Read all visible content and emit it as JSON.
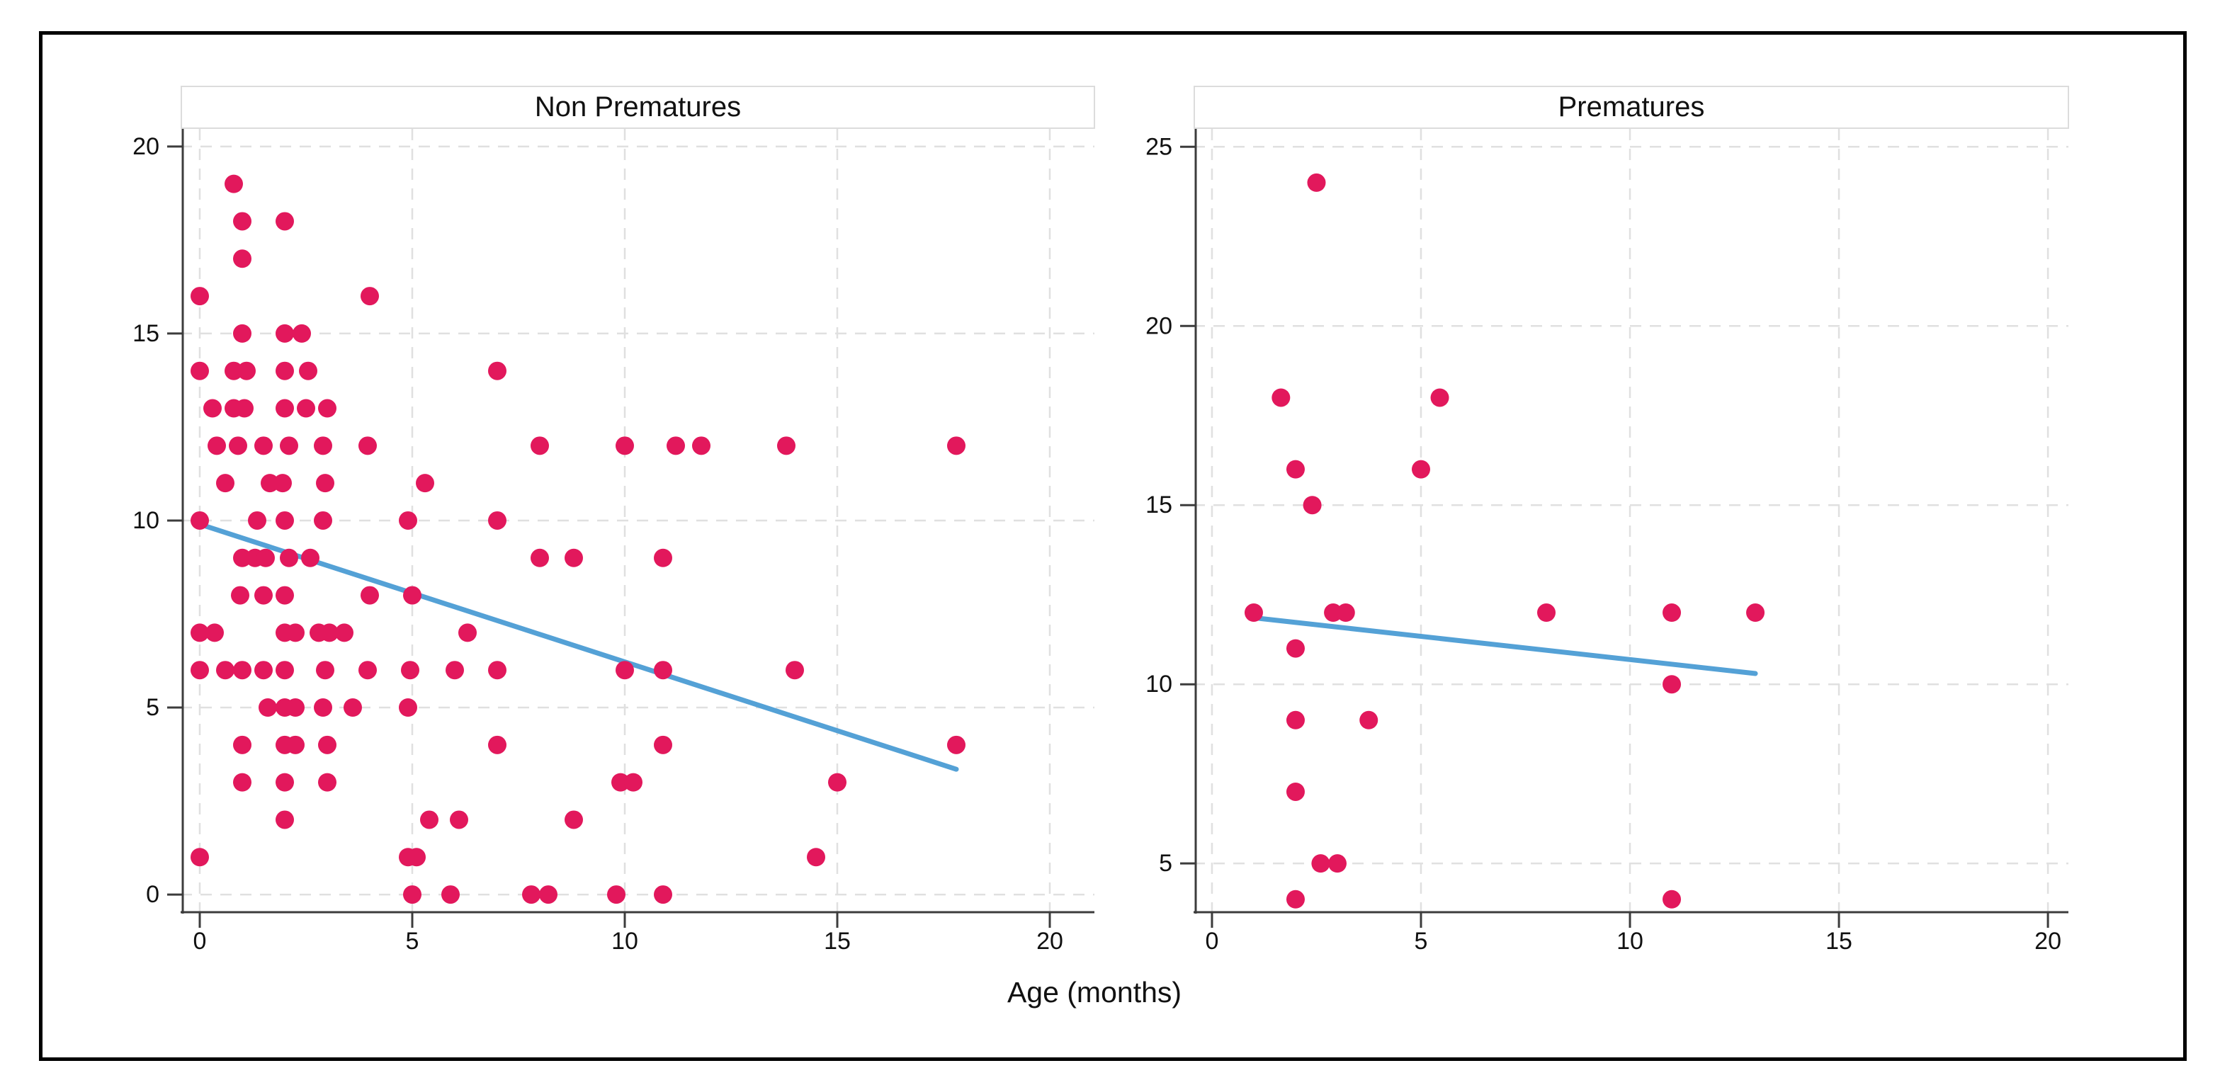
{
  "figure": {
    "x_axis_label": "Age (months)",
    "colors": {
      "dot": "#e2185c",
      "trend_line": "#54a1d6",
      "grid": "#e0e0e0",
      "axis": "#3c3c3c",
      "tick_label": "#111111",
      "strip_border": "#dcdcdc",
      "outer_border": "#000000",
      "background": "#ffffff"
    }
  },
  "chart_data": [
    {
      "type": "scatter",
      "id": "non-prematures",
      "title": "Non Prematures",
      "xlabel": "Age (months)",
      "ylabel": "",
      "xlim": [
        -0.45,
        21.05
      ],
      "ylim": [
        -0.51,
        20.47
      ],
      "x_ticks": [
        0,
        5,
        10,
        15,
        20
      ],
      "y_ticks": [
        0,
        5,
        10,
        15,
        20
      ],
      "grid": true,
      "legend": "none",
      "points": [
        [
          0.8,
          19
        ],
        [
          1,
          18
        ],
        [
          2,
          18
        ],
        [
          1,
          17
        ],
        [
          0,
          16
        ],
        [
          4,
          16
        ],
        [
          1,
          15
        ],
        [
          2,
          15
        ],
        [
          2.4,
          15
        ],
        [
          0,
          14
        ],
        [
          0.8,
          14
        ],
        [
          1.1,
          14
        ],
        [
          2,
          14
        ],
        [
          2.55,
          14
        ],
        [
          7,
          14
        ],
        [
          0.3,
          13
        ],
        [
          0.8,
          13
        ],
        [
          1.05,
          13
        ],
        [
          2,
          13
        ],
        [
          2.5,
          13
        ],
        [
          3,
          13
        ],
        [
          0.4,
          12
        ],
        [
          0.9,
          12
        ],
        [
          1.5,
          12
        ],
        [
          2.1,
          12
        ],
        [
          2.9,
          12
        ],
        [
          3.95,
          12
        ],
        [
          8,
          12
        ],
        [
          10,
          12
        ],
        [
          11.2,
          12
        ],
        [
          11.8,
          12
        ],
        [
          13.8,
          12
        ],
        [
          17.8,
          12
        ],
        [
          0.6,
          11
        ],
        [
          1.65,
          11
        ],
        [
          1.95,
          11
        ],
        [
          2.95,
          11
        ],
        [
          5.3,
          11
        ],
        [
          0,
          10
        ],
        [
          1.35,
          10
        ],
        [
          2,
          10
        ],
        [
          2.9,
          10
        ],
        [
          4.9,
          10
        ],
        [
          7,
          10
        ],
        [
          1,
          9
        ],
        [
          1.3,
          9
        ],
        [
          1.55,
          9
        ],
        [
          2.1,
          9
        ],
        [
          2.6,
          9
        ],
        [
          8,
          9
        ],
        [
          8.8,
          9
        ],
        [
          10.9,
          9
        ],
        [
          0.95,
          8
        ],
        [
          1.5,
          8
        ],
        [
          2,
          8
        ],
        [
          4,
          8
        ],
        [
          5,
          8
        ],
        [
          0,
          7
        ],
        [
          0.35,
          7
        ],
        [
          2,
          7
        ],
        [
          2.25,
          7
        ],
        [
          2.8,
          7
        ],
        [
          3.05,
          7
        ],
        [
          3.4,
          7
        ],
        [
          6.3,
          7
        ],
        [
          0,
          6
        ],
        [
          0.6,
          6
        ],
        [
          1,
          6
        ],
        [
          1.5,
          6
        ],
        [
          2,
          6
        ],
        [
          2.95,
          6
        ],
        [
          3.95,
          6
        ],
        [
          4.95,
          6
        ],
        [
          6,
          6
        ],
        [
          7,
          6
        ],
        [
          10,
          6
        ],
        [
          10.9,
          6
        ],
        [
          14,
          6
        ],
        [
          1.6,
          5
        ],
        [
          2,
          5
        ],
        [
          2.25,
          5
        ],
        [
          2.9,
          5
        ],
        [
          3.6,
          5
        ],
        [
          4.9,
          5
        ],
        [
          1,
          4
        ],
        [
          2,
          4
        ],
        [
          2.25,
          4
        ],
        [
          3,
          4
        ],
        [
          7,
          4
        ],
        [
          10.9,
          4
        ],
        [
          17.8,
          4
        ],
        [
          1,
          3
        ],
        [
          2,
          3
        ],
        [
          3,
          3
        ],
        [
          9.9,
          3
        ],
        [
          10.2,
          3
        ],
        [
          15,
          3
        ],
        [
          2,
          2
        ],
        [
          5.4,
          2
        ],
        [
          6.1,
          2
        ],
        [
          8.8,
          2
        ],
        [
          0,
          1
        ],
        [
          4.9,
          1
        ],
        [
          5.1,
          1
        ],
        [
          14.5,
          1
        ],
        [
          5,
          0
        ],
        [
          5.9,
          0
        ],
        [
          7.8,
          0
        ],
        [
          8.2,
          0
        ],
        [
          9.8,
          0
        ],
        [
          10.9,
          0
        ]
      ],
      "trend": {
        "x1": 0,
        "y1": 9.9,
        "x2": 17.8,
        "y2": 3.35
      }
    },
    {
      "type": "scatter",
      "id": "prematures",
      "title": "Prematures",
      "xlabel": "Age (months)",
      "ylabel": "",
      "xlim": [
        -0.44,
        20.49
      ],
      "ylim": [
        3.6,
        25.5
      ],
      "x_ticks": [
        0,
        5,
        10,
        15,
        20
      ],
      "y_ticks": [
        5,
        10,
        15,
        20,
        25
      ],
      "grid": true,
      "legend": "none",
      "points": [
        [
          2.5,
          24
        ],
        [
          1.65,
          18
        ],
        [
          5.45,
          18
        ],
        [
          2,
          16
        ],
        [
          5,
          16
        ],
        [
          2.4,
          15
        ],
        [
          1,
          12
        ],
        [
          2.9,
          12
        ],
        [
          3.2,
          12
        ],
        [
          8,
          12
        ],
        [
          11,
          12
        ],
        [
          13,
          12
        ],
        [
          2,
          11
        ],
        [
          11,
          10
        ],
        [
          2,
          9
        ],
        [
          3.75,
          9
        ],
        [
          2,
          7
        ],
        [
          2.6,
          5
        ],
        [
          3,
          5
        ],
        [
          2,
          4
        ],
        [
          11,
          4
        ]
      ],
      "trend": {
        "x1": 1.05,
        "y1": 11.85,
        "x2": 13,
        "y2": 10.3
      }
    }
  ]
}
